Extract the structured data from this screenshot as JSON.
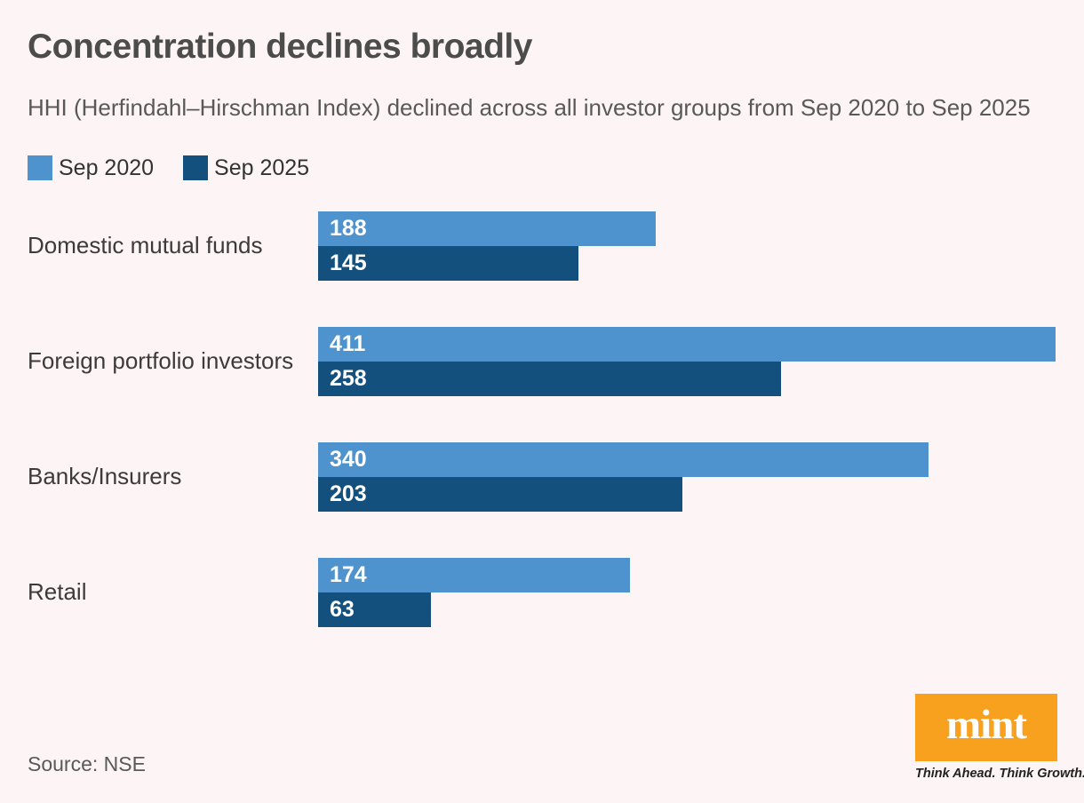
{
  "title": "Concentration declines broadly",
  "subtitle": "HHI (Herfindahl–Hirschman Index) declined across all investor groups from Sep 2020 to Sep 2025",
  "legend": [
    {
      "label": "Sep 2020",
      "color": "#4f93ce"
    },
    {
      "label": "Sep 2025",
      "color": "#13507e"
    }
  ],
  "chart_data": {
    "type": "bar",
    "orientation": "horizontal",
    "title": "Concentration declines broadly",
    "xlabel": "",
    "ylabel": "",
    "xlim": [
      0,
      411
    ],
    "grid": false,
    "legend_position": "top-left",
    "value_labels": "inside-left",
    "categories": [
      "Domestic mutual funds",
      "Foreign portfolio investors",
      "Banks/Insurers",
      "Retail"
    ],
    "series": [
      {
        "name": "Sep 2020",
        "color": "#4f93ce",
        "values": [
          188,
          411,
          340,
          174
        ]
      },
      {
        "name": "Sep 2025",
        "color": "#13507e",
        "values": [
          145,
          258,
          203,
          63
        ]
      }
    ]
  },
  "source": "Source: NSE",
  "logo": {
    "text": "mint",
    "tagline": "Think Ahead. Think Growth.",
    "box_color": "#f8a11e"
  },
  "colors": {
    "background": "#fdf4f5",
    "title_text": "#4c4c4c",
    "subtitle_text": "#595959",
    "category_text": "#3d3a3a",
    "bar_value_text": "#ffffff",
    "series_2020": "#4f93ce",
    "series_2025": "#13507e",
    "logo_orange": "#f8a11e"
  }
}
